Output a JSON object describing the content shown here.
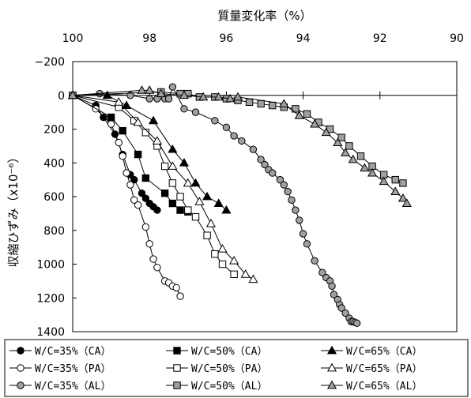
{
  "chart_data": {
    "type": "scatter",
    "xlabel_top": "質量変化率（%）",
    "ylabel": "収縮ひずみ（x10⁻⁶）",
    "x_axis": {
      "position": "top",
      "reversed": true,
      "range": [
        100,
        90
      ],
      "ticks": [
        100,
        98,
        96,
        94,
        92,
        90
      ]
    },
    "y_axis": {
      "reversed": true,
      "range": [
        -200,
        1400
      ],
      "ticks": [
        -200,
        0,
        200,
        400,
        600,
        800,
        1000,
        1200,
        1400
      ]
    },
    "legend": {
      "placement": "bottom",
      "entries": [
        "W/C=35%（CA）",
        "W/C=50%（CA）",
        "W/C=65%（CA）",
        "W/C=35%（PA）",
        "W/C=50%（PA）",
        "W/C=65%（PA）",
        "W/C=35%（AL）",
        "W/C=50%（AL）",
        "W/C=65%（AL）"
      ]
    },
    "series": [
      {
        "name": "W/C=35%（CA）",
        "marker": "circle",
        "fill": "#000000",
        "points": [
          [
            100,
            0
          ],
          [
            99.4,
            60
          ],
          [
            99.2,
            130
          ],
          [
            98.9,
            230
          ],
          [
            98.7,
            350
          ],
          [
            98.5,
            470
          ],
          [
            98.4,
            500
          ],
          [
            98.2,
            580
          ],
          [
            98.1,
            610
          ],
          [
            98.0,
            640
          ],
          [
            97.9,
            660
          ],
          [
            97.8,
            680
          ]
        ]
      },
      {
        "name": "W/C=35%（PA）",
        "marker": "circle",
        "fill": "#ffffff",
        "points": [
          [
            100,
            0
          ],
          [
            99.4,
            80
          ],
          [
            99.0,
            170
          ],
          [
            98.8,
            280
          ],
          [
            98.7,
            360
          ],
          [
            98.6,
            460
          ],
          [
            98.5,
            530
          ],
          [
            98.4,
            620
          ],
          [
            98.3,
            650
          ],
          [
            98.1,
            780
          ],
          [
            98.0,
            880
          ],
          [
            97.9,
            970
          ],
          [
            97.8,
            1020
          ],
          [
            97.6,
            1100
          ],
          [
            97.5,
            1110
          ],
          [
            97.4,
            1130
          ],
          [
            97.3,
            1140
          ],
          [
            97.2,
            1190
          ]
        ]
      },
      {
        "name": "W/C=35%（AL）",
        "marker": "circle",
        "fill": "#a0a0a0",
        "points": [
          [
            100,
            0
          ],
          [
            99.3,
            -10
          ],
          [
            98.5,
            0
          ],
          [
            98.0,
            20
          ],
          [
            97.8,
            20
          ],
          [
            97.6,
            20
          ],
          [
            97.5,
            20
          ],
          [
            97.4,
            -50
          ],
          [
            97.1,
            80
          ],
          [
            96.8,
            100
          ],
          [
            96.3,
            150
          ],
          [
            96.0,
            190
          ],
          [
            95.8,
            240
          ],
          [
            95.6,
            270
          ],
          [
            95.3,
            320
          ],
          [
            95.1,
            380
          ],
          [
            95.0,
            410
          ],
          [
            94.9,
            440
          ],
          [
            94.8,
            460
          ],
          [
            94.6,
            500
          ],
          [
            94.5,
            530
          ],
          [
            94.4,
            570
          ],
          [
            94.3,
            620
          ],
          [
            94.2,
            680
          ],
          [
            94.1,
            740
          ],
          [
            94.0,
            820
          ],
          [
            93.9,
            880
          ],
          [
            93.7,
            980
          ],
          [
            93.5,
            1050
          ],
          [
            93.4,
            1080
          ],
          [
            93.3,
            1100
          ],
          [
            93.25,
            1130
          ],
          [
            93.2,
            1180
          ],
          [
            93.1,
            1210
          ],
          [
            93.05,
            1240
          ],
          [
            93.0,
            1260
          ],
          [
            92.9,
            1290
          ],
          [
            92.8,
            1320
          ],
          [
            92.75,
            1340
          ],
          [
            92.7,
            1340
          ],
          [
            92.65,
            1345
          ],
          [
            92.6,
            1350
          ]
        ]
      },
      {
        "name": "W/C=50%（CA）",
        "marker": "square",
        "fill": "#000000",
        "points": [
          [
            100,
            0
          ],
          [
            99.0,
            130
          ],
          [
            98.7,
            210
          ],
          [
            98.3,
            350
          ],
          [
            98.1,
            490
          ],
          [
            97.6,
            580
          ],
          [
            97.4,
            640
          ],
          [
            97.2,
            680
          ],
          [
            97.0,
            690
          ]
        ]
      },
      {
        "name": "W/C=50%（PA）",
        "marker": "square",
        "fill": "#ffffff",
        "points": [
          [
            100,
            0
          ],
          [
            98.8,
            70
          ],
          [
            98.4,
            150
          ],
          [
            98.1,
            220
          ],
          [
            97.8,
            300
          ],
          [
            97.6,
            420
          ],
          [
            97.4,
            520
          ],
          [
            97.2,
            600
          ],
          [
            97.0,
            680
          ],
          [
            96.8,
            720
          ],
          [
            96.5,
            830
          ],
          [
            96.3,
            940
          ],
          [
            96.1,
            1000
          ],
          [
            95.8,
            1060
          ]
        ]
      },
      {
        "name": "W/C=50%（AL）",
        "marker": "square",
        "fill": "#a0a0a0",
        "points": [
          [
            100,
            0
          ],
          [
            97.7,
            -20
          ],
          [
            97.2,
            -10
          ],
          [
            97.0,
            -10
          ],
          [
            96.7,
            10
          ],
          [
            96.3,
            10
          ],
          [
            96.0,
            20
          ],
          [
            95.7,
            30
          ],
          [
            95.4,
            40
          ],
          [
            95.1,
            50
          ],
          [
            94.8,
            60
          ],
          [
            94.5,
            70
          ],
          [
            94.2,
            80
          ],
          [
            93.9,
            110
          ],
          [
            93.6,
            160
          ],
          [
            93.3,
            200
          ],
          [
            93.0,
            250
          ],
          [
            92.8,
            300
          ],
          [
            92.5,
            360
          ],
          [
            92.2,
            420
          ],
          [
            91.9,
            470
          ],
          [
            91.6,
            500
          ],
          [
            91.4,
            520
          ]
        ]
      },
      {
        "name": "W/C=65%（CA）",
        "marker": "triangle",
        "fill": "#000000",
        "points": [
          [
            100,
            0
          ],
          [
            99.1,
            0
          ],
          [
            98.6,
            60
          ],
          [
            97.9,
            150
          ],
          [
            97.4,
            320
          ],
          [
            97.1,
            400
          ],
          [
            96.8,
            520
          ],
          [
            96.5,
            600
          ],
          [
            96.2,
            640
          ],
          [
            96.0,
            680
          ]
        ]
      },
      {
        "name": "W/C=65%（PA）",
        "marker": "triangle",
        "fill": "#ffffff",
        "points": [
          [
            100,
            0
          ],
          [
            98.8,
            40
          ],
          [
            98.3,
            160
          ],
          [
            97.8,
            270
          ],
          [
            97.4,
            420
          ],
          [
            97.0,
            520
          ],
          [
            96.7,
            630
          ],
          [
            96.4,
            760
          ],
          [
            96.1,
            910
          ],
          [
            95.8,
            980
          ],
          [
            95.5,
            1060
          ],
          [
            95.3,
            1090
          ]
        ]
      },
      {
        "name": "W/C=65%（AL）",
        "marker": "triangle",
        "fill": "#a0a0a0",
        "points": [
          [
            100,
            0
          ],
          [
            98.2,
            -30
          ],
          [
            98.0,
            -30
          ],
          [
            97.7,
            -10
          ],
          [
            97.1,
            0
          ],
          [
            96.6,
            10
          ],
          [
            96.2,
            10
          ],
          [
            95.9,
            20
          ],
          [
            95.7,
            10
          ],
          [
            94.5,
            50
          ],
          [
            94.1,
            120
          ],
          [
            93.7,
            170
          ],
          [
            93.4,
            220
          ],
          [
            93.1,
            280
          ],
          [
            92.9,
            340
          ],
          [
            92.7,
            380
          ],
          [
            92.4,
            430
          ],
          [
            92.2,
            460
          ],
          [
            91.9,
            510
          ],
          [
            91.6,
            570
          ],
          [
            91.4,
            610
          ],
          [
            91.3,
            640
          ]
        ]
      }
    ]
  }
}
